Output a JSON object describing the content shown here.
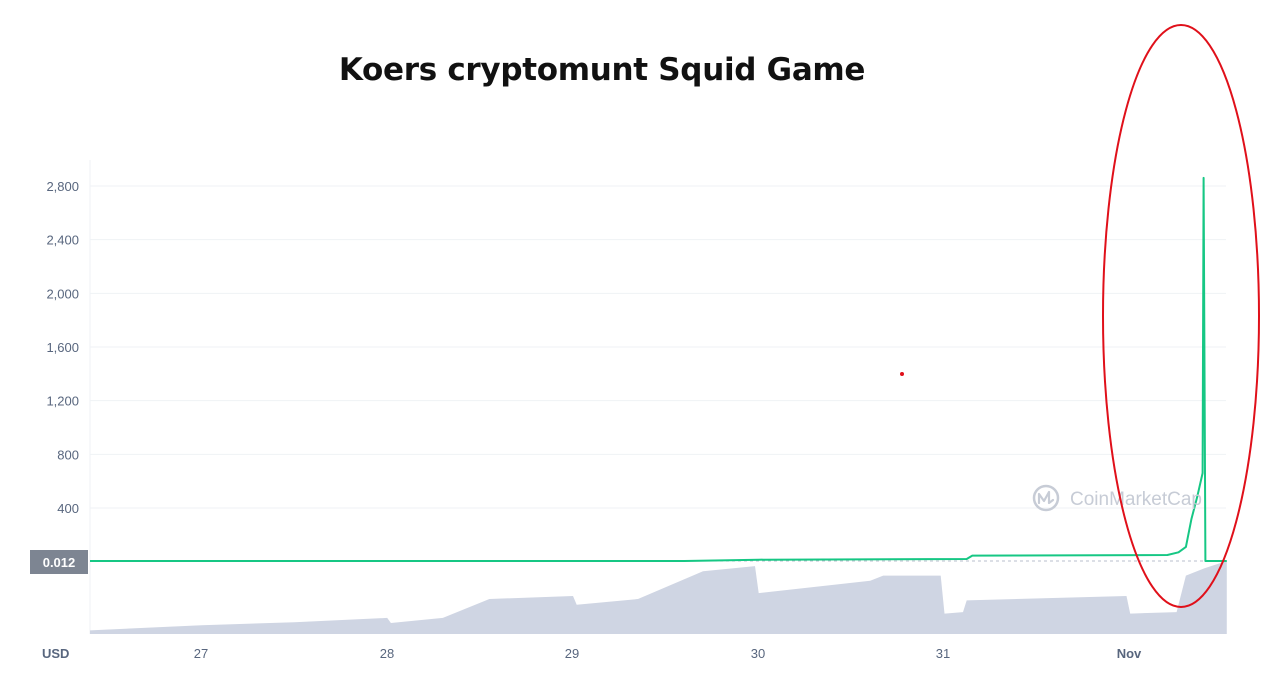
{
  "chart_data": {
    "type": "line",
    "title": "Koers cryptomunt Squid Game",
    "ylabel": "USD",
    "xlabel": "",
    "x_ticks": [
      "27",
      "28",
      "29",
      "30",
      "31",
      "Nov"
    ],
    "y_ticks": [
      "400",
      "800",
      "1,200",
      "1,600",
      "2,000",
      "2,400",
      "2,800"
    ],
    "y_values": [
      400,
      800,
      1200,
      1600,
      2000,
      2400,
      2800
    ],
    "ylim": [
      0,
      2950
    ],
    "xlim": [
      26.4,
      32.52
    ],
    "current_price_label": "0.012",
    "grid": true,
    "series": [
      {
        "values": [
          {
            "x": 26.4,
            "y": 0
          },
          {
            "x": 29.6,
            "y": 0
          },
          {
            "x": 30.0,
            "y": 15
          },
          {
            "x": 31.12,
            "y": 20
          },
          {
            "x": 31.15,
            "y": 45
          },
          {
            "x": 32.2,
            "y": 50
          },
          {
            "x": 32.26,
            "y": 70
          },
          {
            "x": 32.3,
            "y": 110
          },
          {
            "x": 32.33,
            "y": 320
          },
          {
            "x": 32.36,
            "y": 480
          },
          {
            "x": 32.39,
            "y": 660
          },
          {
            "x": 32.395,
            "y": 2860
          },
          {
            "x": 32.405,
            "y": 0
          },
          {
            "x": 32.52,
            "y": 0
          }
        ]
      }
    ],
    "volume": [
      {
        "x": 26.4,
        "v": 0.05
      },
      {
        "x": 27.0,
        "v": 0.12
      },
      {
        "x": 27.5,
        "v": 0.16
      },
      {
        "x": 28.0,
        "v": 0.22
      },
      {
        "x": 28.02,
        "v": 0.15
      },
      {
        "x": 28.3,
        "v": 0.22
      },
      {
        "x": 28.55,
        "v": 0.48
      },
      {
        "x": 29.0,
        "v": 0.52
      },
      {
        "x": 29.02,
        "v": 0.4
      },
      {
        "x": 29.35,
        "v": 0.48
      },
      {
        "x": 29.7,
        "v": 0.86
      },
      {
        "x": 29.98,
        "v": 0.93
      },
      {
        "x": 30.0,
        "v": 0.56
      },
      {
        "x": 30.6,
        "v": 0.73
      },
      {
        "x": 30.67,
        "v": 0.8
      },
      {
        "x": 30.98,
        "v": 0.8
      },
      {
        "x": 31.0,
        "v": 0.28
      },
      {
        "x": 31.1,
        "v": 0.3
      },
      {
        "x": 31.12,
        "v": 0.46
      },
      {
        "x": 31.98,
        "v": 0.52
      },
      {
        "x": 32.0,
        "v": 0.28
      },
      {
        "x": 32.25,
        "v": 0.3
      },
      {
        "x": 32.3,
        "v": 0.8
      },
      {
        "x": 32.4,
        "v": 0.9
      },
      {
        "x": 32.52,
        "v": 1.05
      }
    ],
    "colors": {
      "line": "#16c784",
      "volume": "#cfd5e3",
      "grid": "#eff2f5",
      "tick_text": "#58667e",
      "price_tag_bg": "#7d8592",
      "annotation": "#e0101a"
    },
    "watermark": "CoinMarketCap"
  }
}
